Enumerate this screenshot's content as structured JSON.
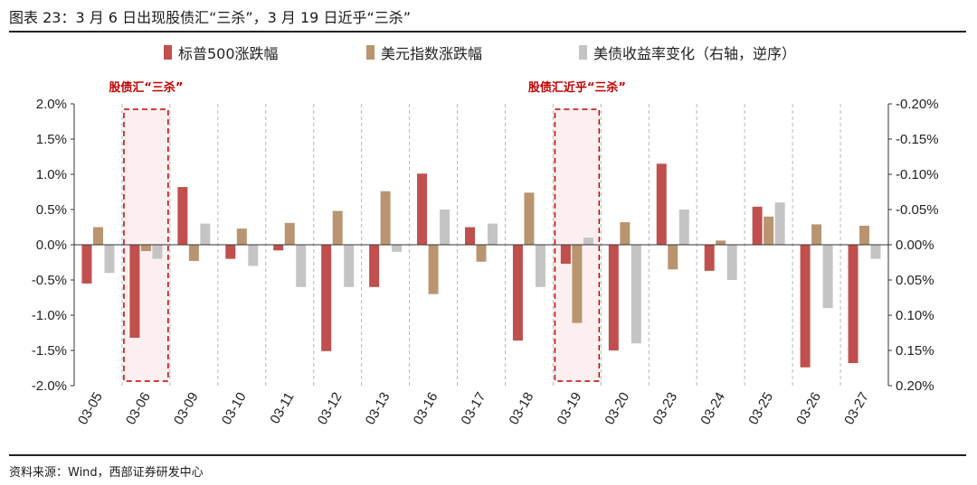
{
  "figure": {
    "title": "图表 23：3 月 6 日出现股债汇“三杀”，3 月 19 日近乎“三杀”",
    "source": "资料来源：Wind，西部证券研发中心"
  },
  "chart_data": {
    "type": "bar",
    "categories": [
      "03-05",
      "03-06",
      "03-09",
      "03-10",
      "03-11",
      "03-12",
      "03-13",
      "03-16",
      "03-17",
      "03-18",
      "03-19",
      "03-20",
      "03-23",
      "03-24",
      "03-25",
      "03-26",
      "03-27"
    ],
    "series": [
      {
        "name": "标普500涨跌幅",
        "axis": "left",
        "color": "#c0504d",
        "values": [
          -0.55,
          -1.32,
          0.82,
          -0.2,
          -0.08,
          -1.51,
          -0.6,
          1.01,
          0.25,
          -1.36,
          -0.27,
          -1.5,
          1.15,
          -0.37,
          0.54,
          -1.74,
          -1.68
        ]
      },
      {
        "name": "美元指数涨跌幅",
        "axis": "left",
        "color": "#b89570",
        "values": [
          0.25,
          -0.09,
          -0.23,
          0.23,
          0.31,
          0.48,
          0.76,
          -0.7,
          -0.24,
          0.74,
          -1.11,
          0.32,
          -0.35,
          0.06,
          0.4,
          0.29,
          0.27
        ]
      },
      {
        "name": "美债收益率变化（右轴，逆序）",
        "axis": "right",
        "color": "#c4c4c4",
        "values": [
          0.04,
          0.02,
          -0.03,
          0.03,
          0.06,
          0.06,
          0.01,
          -0.05,
          -0.03,
          0.06,
          -0.01,
          0.14,
          -0.05,
          0.05,
          -0.06,
          0.09,
          0.02
        ]
      }
    ],
    "y_left": {
      "range": [
        -2.0,
        2.0
      ],
      "ticks": [
        "2.0%",
        "1.5%",
        "1.0%",
        "0.5%",
        "0.0%",
        "-0.5%",
        "-1.0%",
        "-1.5%",
        "-2.0%"
      ]
    },
    "y_right": {
      "range": [
        -0.2,
        0.2
      ],
      "inverted": true,
      "ticks": [
        "-0.20%",
        "-0.15%",
        "-0.10%",
        "-0.05%",
        "0.00%",
        "0.05%",
        "0.10%",
        "0.15%",
        "0.20%"
      ]
    },
    "legend_position": "top-center",
    "grid": "vertical dashed category separators",
    "annotations": [
      {
        "label": "股债汇“三杀”",
        "category": "03-06",
        "color": "#c00000"
      },
      {
        "label": "股债汇近乎“三杀”",
        "category": "03-19",
        "color": "#c00000"
      }
    ]
  }
}
